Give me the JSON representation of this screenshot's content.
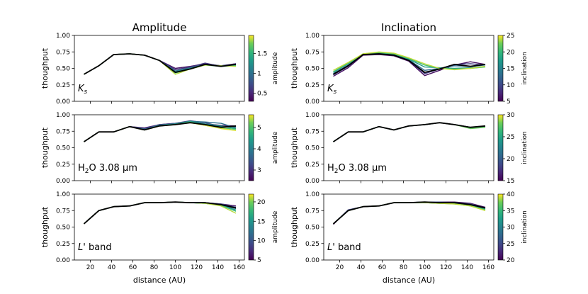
{
  "chart_data": {
    "type": "line",
    "column_titles": [
      "Amplitude",
      "Inclination"
    ],
    "xlabel": "distance (AU)",
    "ylabel": "thoughput",
    "xlim": [
      5,
      165
    ],
    "ylim": [
      0,
      1
    ],
    "xticks": [
      20,
      40,
      60,
      80,
      100,
      120,
      140,
      160
    ],
    "yticks": [
      0.0,
      0.25,
      0.5,
      0.75,
      1.0
    ],
    "x": [
      14,
      28,
      42,
      57,
      71,
      85,
      100,
      114,
      128,
      143,
      157
    ],
    "panels": [
      {
        "id": "ks-amplitude",
        "row": 0,
        "col": 0,
        "label": "Ks",
        "reference": [
          0.41,
          0.54,
          0.71,
          0.72,
          0.7,
          0.62,
          0.44,
          0.49,
          0.56,
          0.53,
          0.56
        ],
        "colorbar": {
          "label": "amplitude",
          "min": 0.3,
          "max": 1.95,
          "ticks": [
            0.5,
            1.0,
            1.5
          ]
        },
        "series": [
          {
            "param": 0.4,
            "values": [
              0.41,
              0.54,
              0.71,
              0.72,
              0.7,
              0.62,
              0.5,
              0.53,
              0.57,
              0.54,
              0.57
            ]
          },
          {
            "param": 0.6,
            "values": [
              0.41,
              0.54,
              0.71,
              0.72,
              0.7,
              0.62,
              0.48,
              0.52,
              0.58,
              0.53,
              0.57
            ]
          },
          {
            "param": 0.9,
            "values": [
              0.41,
              0.54,
              0.71,
              0.72,
              0.7,
              0.62,
              0.46,
              0.51,
              0.56,
              0.54,
              0.56
            ]
          },
          {
            "param": 1.3,
            "values": [
              0.41,
              0.54,
              0.71,
              0.72,
              0.7,
              0.62,
              0.45,
              0.5,
              0.56,
              0.53,
              0.55
            ]
          },
          {
            "param": 1.6,
            "values": [
              0.41,
              0.54,
              0.71,
              0.72,
              0.7,
              0.62,
              0.43,
              0.49,
              0.55,
              0.53,
              0.54
            ]
          },
          {
            "param": 1.85,
            "values": [
              0.41,
              0.54,
              0.71,
              0.72,
              0.7,
              0.62,
              0.41,
              0.49,
              0.55,
              0.54,
              0.53
            ]
          }
        ]
      },
      {
        "id": "ks-inclination",
        "row": 0,
        "col": 1,
        "label": "Ks",
        "reference": [
          0.41,
          0.54,
          0.71,
          0.72,
          0.7,
          0.62,
          0.44,
          0.49,
          0.56,
          0.53,
          0.56
        ],
        "colorbar": {
          "label": "inclination",
          "min": 5,
          "max": 25,
          "ticks": [
            5,
            10,
            15,
            20,
            25
          ]
        },
        "series": [
          {
            "param": 6,
            "values": [
              0.38,
              0.51,
              0.7,
              0.71,
              0.69,
              0.61,
              0.39,
              0.47,
              0.55,
              0.6,
              0.56
            ]
          },
          {
            "param": 9,
            "values": [
              0.4,
              0.53,
              0.71,
              0.72,
              0.7,
              0.62,
              0.42,
              0.49,
              0.56,
              0.57,
              0.55
            ]
          },
          {
            "param": 13,
            "values": [
              0.42,
              0.55,
              0.71,
              0.72,
              0.7,
              0.63,
              0.47,
              0.5,
              0.54,
              0.53,
              0.55
            ]
          },
          {
            "param": 17,
            "values": [
              0.44,
              0.57,
              0.71,
              0.73,
              0.71,
              0.64,
              0.52,
              0.51,
              0.5,
              0.51,
              0.53
            ]
          },
          {
            "param": 21,
            "values": [
              0.45,
              0.58,
              0.72,
              0.74,
              0.72,
              0.65,
              0.55,
              0.5,
              0.49,
              0.5,
              0.52
            ]
          },
          {
            "param": 24,
            "values": [
              0.47,
              0.59,
              0.72,
              0.75,
              0.73,
              0.66,
              0.57,
              0.5,
              0.48,
              0.5,
              0.53
            ]
          }
        ]
      },
      {
        "id": "h2o-amplitude",
        "row": 1,
        "col": 0,
        "label": "H2O 3.08 µm",
        "reference": [
          0.59,
          0.74,
          0.74,
          0.82,
          0.77,
          0.83,
          0.85,
          0.88,
          0.85,
          0.81,
          0.83
        ],
        "colorbar": {
          "label": "amplitude",
          "min": 2.5,
          "max": 5.6,
          "ticks": [
            3,
            4,
            5
          ]
        },
        "series": [
          {
            "param": 2.7,
            "values": [
              0.59,
              0.74,
              0.74,
              0.82,
              0.8,
              0.85,
              0.87,
              0.9,
              0.86,
              0.84,
              0.83
            ]
          },
          {
            "param": 3.2,
            "values": [
              0.59,
              0.74,
              0.74,
              0.82,
              0.79,
              0.85,
              0.87,
              0.91,
              0.88,
              0.82,
              0.82
            ]
          },
          {
            "param": 3.8,
            "values": [
              0.59,
              0.74,
              0.74,
              0.82,
              0.78,
              0.84,
              0.86,
              0.9,
              0.89,
              0.87,
              0.8
            ]
          },
          {
            "param": 4.4,
            "values": [
              0.59,
              0.74,
              0.74,
              0.82,
              0.77,
              0.84,
              0.86,
              0.9,
              0.86,
              0.83,
              0.79
            ]
          },
          {
            "param": 5.0,
            "values": [
              0.59,
              0.74,
              0.74,
              0.82,
              0.77,
              0.83,
              0.85,
              0.89,
              0.84,
              0.8,
              0.78
            ]
          },
          {
            "param": 5.5,
            "values": [
              0.59,
              0.74,
              0.74,
              0.82,
              0.77,
              0.83,
              0.85,
              0.88,
              0.84,
              0.79,
              0.76
            ]
          }
        ]
      },
      {
        "id": "h2o-inclination",
        "row": 1,
        "col": 1,
        "label": "H2O 3.08 µm",
        "reference": [
          0.59,
          0.74,
          0.74,
          0.82,
          0.77,
          0.83,
          0.85,
          0.88,
          0.85,
          0.81,
          0.83
        ],
        "colorbar": {
          "label": "inclination",
          "min": 15,
          "max": 30,
          "ticks": [
            15,
            20,
            25,
            30
          ]
        },
        "series": [
          {
            "param": 16,
            "values": [
              0.59,
              0.74,
              0.74,
              0.82,
              0.77,
              0.83,
              0.85,
              0.88,
              0.85,
              0.81,
              0.82
            ]
          },
          {
            "param": 20,
            "values": [
              0.59,
              0.74,
              0.74,
              0.82,
              0.77,
              0.83,
              0.85,
              0.88,
              0.85,
              0.81,
              0.82
            ]
          },
          {
            "param": 24,
            "values": [
              0.59,
              0.74,
              0.74,
              0.82,
              0.77,
              0.83,
              0.85,
              0.88,
              0.85,
              0.8,
              0.82
            ]
          },
          {
            "param": 28,
            "values": [
              0.59,
              0.74,
              0.74,
              0.82,
              0.77,
              0.83,
              0.85,
              0.88,
              0.85,
              0.79,
              0.81
            ]
          }
        ]
      },
      {
        "id": "lband-amplitude",
        "row": 2,
        "col": 0,
        "label": "L' band",
        "reference": [
          0.55,
          0.75,
          0.81,
          0.82,
          0.87,
          0.87,
          0.88,
          0.87,
          0.87,
          0.84,
          0.79
        ],
        "colorbar": {
          "label": "amplitude",
          "min": 5,
          "max": 22,
          "ticks": [
            5,
            10,
            15,
            20
          ]
        },
        "series": [
          {
            "param": 6,
            "values": [
              0.55,
              0.75,
              0.81,
              0.82,
              0.87,
              0.87,
              0.88,
              0.87,
              0.87,
              0.85,
              0.82
            ]
          },
          {
            "param": 9,
            "values": [
              0.55,
              0.75,
              0.81,
              0.82,
              0.87,
              0.87,
              0.88,
              0.87,
              0.87,
              0.85,
              0.8
            ]
          },
          {
            "param": 12,
            "values": [
              0.55,
              0.75,
              0.81,
              0.82,
              0.87,
              0.87,
              0.88,
              0.87,
              0.87,
              0.84,
              0.78
            ]
          },
          {
            "param": 15,
            "values": [
              0.55,
              0.75,
              0.81,
              0.82,
              0.87,
              0.87,
              0.88,
              0.87,
              0.86,
              0.83,
              0.76
            ]
          },
          {
            "param": 18,
            "values": [
              0.55,
              0.75,
              0.81,
              0.82,
              0.87,
              0.87,
              0.88,
              0.87,
              0.86,
              0.83,
              0.74
            ]
          },
          {
            "param": 21,
            "values": [
              0.55,
              0.75,
              0.81,
              0.82,
              0.87,
              0.87,
              0.88,
              0.87,
              0.86,
              0.82,
              0.71
            ]
          }
        ]
      },
      {
        "id": "lband-inclination",
        "row": 2,
        "col": 1,
        "label": "L' band",
        "reference": [
          0.55,
          0.75,
          0.81,
          0.82,
          0.87,
          0.87,
          0.88,
          0.87,
          0.87,
          0.84,
          0.79
        ],
        "colorbar": {
          "label": "inclination",
          "min": 20,
          "max": 40,
          "ticks": [
            20,
            25,
            30,
            35,
            40
          ]
        },
        "series": [
          {
            "param": 21,
            "values": [
              0.54,
              0.76,
              0.81,
              0.82,
              0.87,
              0.87,
              0.88,
              0.88,
              0.88,
              0.86,
              0.8
            ]
          },
          {
            "param": 25,
            "values": [
              0.55,
              0.76,
              0.81,
              0.82,
              0.87,
              0.87,
              0.88,
              0.88,
              0.87,
              0.85,
              0.79
            ]
          },
          {
            "param": 29,
            "values": [
              0.55,
              0.75,
              0.81,
              0.82,
              0.87,
              0.87,
              0.88,
              0.87,
              0.87,
              0.84,
              0.78
            ]
          },
          {
            "param": 33,
            "values": [
              0.55,
              0.75,
              0.81,
              0.82,
              0.87,
              0.87,
              0.87,
              0.86,
              0.86,
              0.83,
              0.77
            ]
          },
          {
            "param": 37,
            "values": [
              0.55,
              0.75,
              0.81,
              0.82,
              0.87,
              0.87,
              0.87,
              0.86,
              0.85,
              0.82,
              0.76
            ]
          },
          {
            "param": 39,
            "values": [
              0.55,
              0.75,
              0.81,
              0.82,
              0.87,
              0.87,
              0.87,
              0.86,
              0.85,
              0.82,
              0.75
            ]
          }
        ]
      }
    ]
  }
}
